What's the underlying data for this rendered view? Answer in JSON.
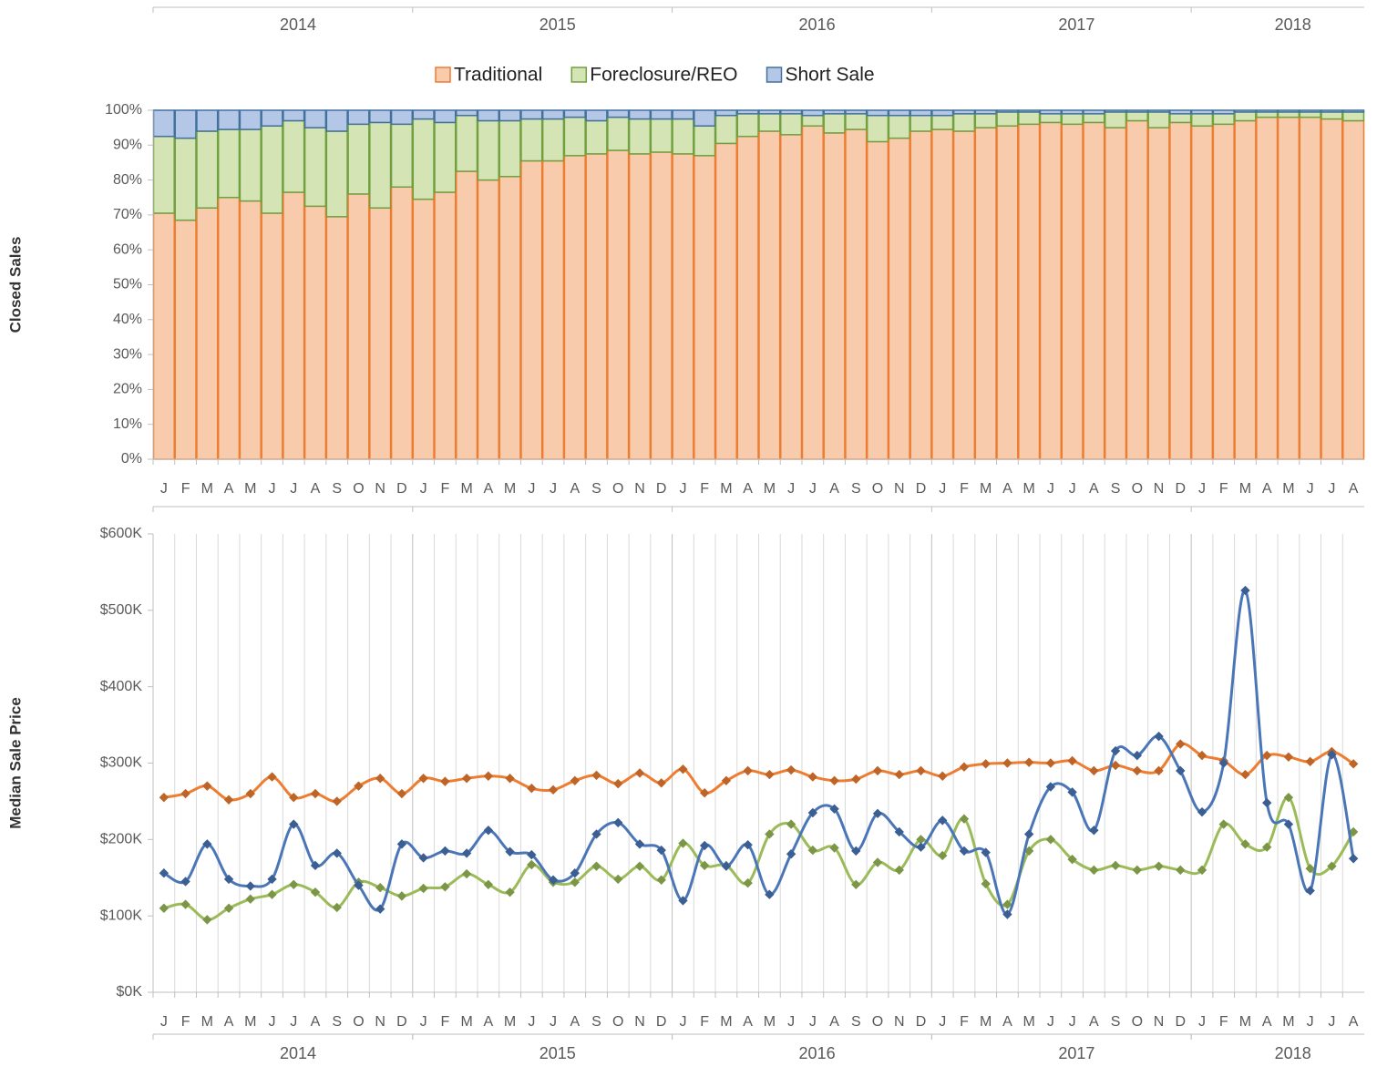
{
  "chart_data": [
    {
      "type": "bar",
      "stacked": true,
      "axis_title": "Closed Sales",
      "legend": "top",
      "categories": [
        "J",
        "F",
        "M",
        "A",
        "M",
        "J",
        "J",
        "A",
        "S",
        "O",
        "N",
        "D",
        "J",
        "F",
        "M",
        "A",
        "M",
        "J",
        "J",
        "A",
        "S",
        "O",
        "N",
        "D",
        "J",
        "F",
        "M",
        "A",
        "M",
        "J",
        "J",
        "A",
        "S",
        "O",
        "N",
        "D",
        "J",
        "F",
        "M",
        "A",
        "M",
        "J",
        "J",
        "A",
        "S",
        "O",
        "N",
        "D",
        "J",
        "F",
        "M",
        "A",
        "M",
        "J",
        "J",
        "A"
      ],
      "years": [
        "2014",
        "2015",
        "2016",
        "2017",
        "2018"
      ],
      "ylim": [
        0,
        100
      ],
      "yticks": [
        {
          "value": 0,
          "label": "0%"
        },
        {
          "value": 10,
          "label": "10%"
        },
        {
          "value": 20,
          "label": "20%"
        },
        {
          "value": 30,
          "label": "30%"
        },
        {
          "value": 40,
          "label": "40%"
        },
        {
          "value": 50,
          "label": "50%"
        },
        {
          "value": 60,
          "label": "60%"
        },
        {
          "value": 70,
          "label": "70%"
        },
        {
          "value": 80,
          "label": "80%"
        },
        {
          "value": 90,
          "label": "90%"
        },
        {
          "value": 100,
          "label": "100%"
        }
      ],
      "series": [
        {
          "name": "Traditional",
          "color": "#f8cbad",
          "edge_color": "#ed7d31",
          "values": [
            70.5,
            68.5,
            72,
            75,
            74,
            70.5,
            76.5,
            72.5,
            69.5,
            76,
            72,
            78,
            74.5,
            76.5,
            82.5,
            80,
            81,
            85.5,
            85.5,
            87,
            87.5,
            88.5,
            87.5,
            88,
            87.5,
            87,
            90.5,
            92.5,
            94,
            93,
            95.5,
            93.5,
            94.5,
            91,
            92,
            94,
            94.5,
            94,
            95,
            95.5,
            96,
            96.5,
            96,
            96.5,
            95,
            97,
            95,
            96.5,
            95.5,
            96,
            97,
            98,
            98,
            98,
            97.5,
            97
          ]
        },
        {
          "name": "Foreclosure/REO",
          "color": "#d5e4b5",
          "edge_color": "#70a040",
          "values": [
            22,
            23.5,
            22,
            19.5,
            20.5,
            25,
            20.5,
            22.5,
            24.5,
            20,
            24.5,
            18,
            23,
            20,
            16,
            17,
            16,
            12,
            12,
            11,
            9.5,
            9.5,
            10,
            9.5,
            10,
            8.5,
            8,
            6.5,
            5,
            6,
            3,
            5.5,
            4.5,
            7.5,
            6.5,
            4.5,
            4,
            5,
            4,
            4,
            3.5,
            2.5,
            3,
            2.5,
            4.5,
            2.5,
            4.5,
            2.5,
            3.5,
            3,
            2.5,
            1.5,
            1.5,
            1.5,
            2,
            2.5
          ]
        },
        {
          "name": "Short Sale",
          "color": "#b4c7e7",
          "edge_color": "#41719c",
          "values": [
            7.5,
            8,
            6,
            5.5,
            5.5,
            4.5,
            3,
            5,
            6,
            4,
            3.5,
            4,
            2.5,
            3.5,
            1.5,
            3,
            3,
            2.5,
            2.5,
            2,
            3,
            2,
            2.5,
            2.5,
            2.5,
            4.5,
            1.5,
            1,
            1,
            1,
            1.5,
            1,
            1,
            1.5,
            1.5,
            1.5,
            1.5,
            1,
            1,
            0.5,
            0.5,
            1,
            1,
            1,
            0.5,
            0.5,
            0.5,
            1,
            1,
            1,
            0.5,
            0.5,
            0.5,
            0.5,
            0.5,
            0.5
          ]
        }
      ]
    },
    {
      "type": "line",
      "smooth": true,
      "axis_title": "Median Sale Price",
      "grid_x": true,
      "categories": [
        "J",
        "F",
        "M",
        "A",
        "M",
        "J",
        "J",
        "A",
        "S",
        "O",
        "N",
        "D",
        "J",
        "F",
        "M",
        "A",
        "M",
        "J",
        "J",
        "A",
        "S",
        "O",
        "N",
        "D",
        "J",
        "F",
        "M",
        "A",
        "M",
        "J",
        "J",
        "A",
        "S",
        "O",
        "N",
        "D",
        "J",
        "F",
        "M",
        "A",
        "M",
        "J",
        "J",
        "A",
        "S",
        "O",
        "N",
        "D",
        "J",
        "F",
        "M",
        "A",
        "M",
        "J",
        "J",
        "A"
      ],
      "years": [
        "2014",
        "2015",
        "2016",
        "2017",
        "2018"
      ],
      "ylim": [
        0,
        600
      ],
      "yticks": [
        {
          "value": 0,
          "label": "$0K"
        },
        {
          "value": 100,
          "label": "$100K"
        },
        {
          "value": 200,
          "label": "$200K"
        },
        {
          "value": 300,
          "label": "$300K"
        },
        {
          "value": 400,
          "label": "$400K"
        },
        {
          "value": 500,
          "label": "$500K"
        },
        {
          "value": 600,
          "label": "$600K"
        }
      ],
      "series": [
        {
          "color": "#ed7d31",
          "values": [
            255,
            260,
            270,
            252,
            260,
            282,
            255,
            260,
            250,
            270,
            280,
            260,
            280,
            276,
            280,
            283,
            280,
            267,
            265,
            277,
            284,
            273,
            287,
            274,
            292,
            261,
            277,
            290,
            285,
            291,
            282,
            277,
            279,
            290,
            285,
            290,
            283,
            295,
            299,
            300,
            301,
            300,
            303,
            290,
            297,
            290,
            290,
            325,
            310,
            303,
            285,
            310,
            308,
            302,
            315,
            299
          ]
        },
        {
          "color": "#9bbb59",
          "values": [
            110,
            115,
            95,
            110,
            122,
            128,
            141,
            131,
            111,
            144,
            137,
            126,
            136,
            138,
            155,
            141,
            131,
            167,
            144,
            144,
            165,
            148,
            165,
            147,
            195,
            166,
            166,
            143,
            207,
            220,
            186,
            189,
            141,
            170,
            160,
            200,
            179,
            227,
            142,
            115,
            185,
            200,
            174,
            160,
            166,
            160,
            165,
            160,
            160,
            220,
            194,
            190,
            255,
            162,
            165,
            210
          ]
        },
        {
          "color": "#4a76b8",
          "values": [
            156,
            145,
            194,
            148,
            139,
            148,
            220,
            166,
            182,
            140,
            109,
            194,
            176,
            185,
            182,
            212,
            184,
            180,
            147,
            156,
            207,
            222,
            194,
            186,
            120,
            192,
            165,
            193,
            128,
            181,
            235,
            240,
            185,
            234,
            210,
            190,
            225,
            185,
            183,
            102,
            207,
            269,
            262,
            212,
            316,
            310,
            335,
            290,
            236,
            300,
            526,
            248,
            220,
            133,
            311,
            175
          ]
        }
      ]
    }
  ]
}
